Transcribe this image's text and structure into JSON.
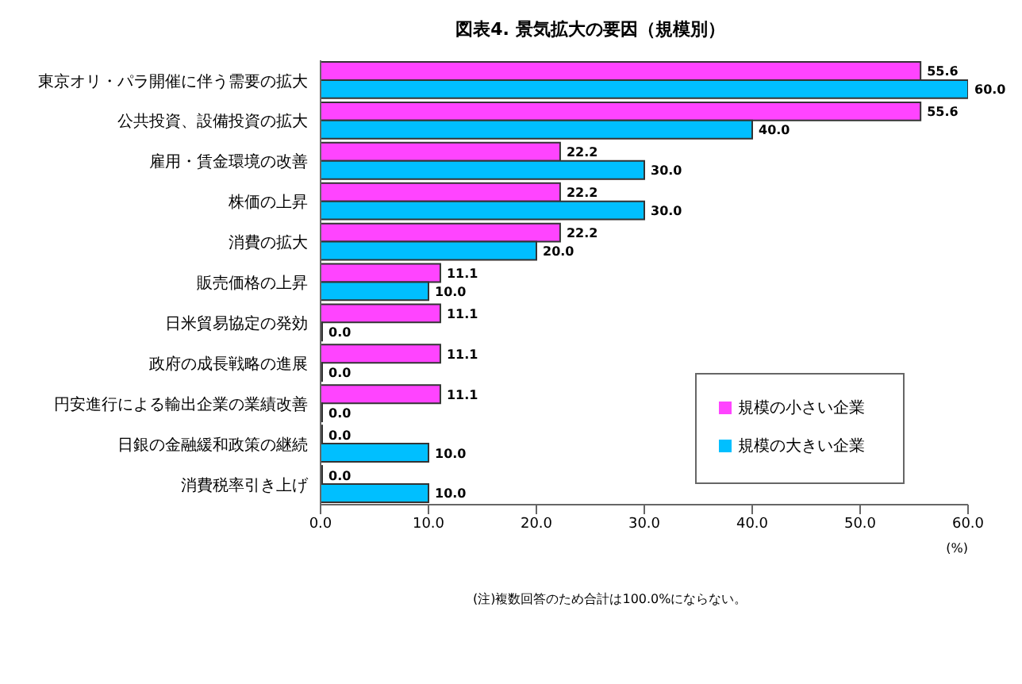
{
  "chart_data": {
    "type": "bar",
    "orientation": "horizontal",
    "title": "図表4. 景気拡大の要因（規模別）",
    "xlabel": "(%)",
    "categories": [
      "東京オリ・パラ開催に伴う需要の拡大",
      "公共投資、設備投資の拡大",
      "雇用・賃金環境の改善",
      "株価の上昇",
      "消費の拡大",
      "販売価格の上昇",
      "日米貿易協定の発効",
      "政府の成長戦略の進展",
      "円安進行による輸出企業の業績改善",
      "日銀の金融緩和政策の継続",
      "消費税率引き上げ"
    ],
    "series": [
      {
        "name": "規模の小さい企業",
        "color": "#ff44ff",
        "values": [
          55.6,
          55.6,
          22.2,
          22.2,
          22.2,
          11.1,
          11.1,
          11.1,
          11.1,
          0,
          0
        ],
        "value_labels": [
          "55.6",
          "55.6",
          "22.2",
          "22.2",
          "22.2",
          "11.1",
          "11.1",
          "11.1",
          "11.1",
          "0.0",
          "0.0"
        ]
      },
      {
        "name": "規模の大きい企業",
        "color": "#00bfff",
        "values": [
          60,
          40,
          30,
          30,
          20,
          10,
          0,
          0,
          0,
          10,
          10
        ],
        "value_labels": [
          "60.0",
          "40.0",
          "30.0",
          "30.0",
          "20.0",
          "10.0",
          "0.0",
          "0.0",
          "0.0",
          "10.0",
          "10.0"
        ]
      }
    ],
    "xlim": [
      0,
      60
    ],
    "xticks": [
      {
        "value": 0,
        "label": "0.0"
      },
      {
        "value": 10,
        "label": "10.0"
      },
      {
        "value": 20,
        "label": "20.0"
      },
      {
        "value": 30,
        "label": "30.0"
      },
      {
        "value": 40,
        "label": "40.0"
      },
      {
        "value": 50,
        "label": "50.0"
      },
      {
        "value": 60,
        "label": "60.0"
      }
    ],
    "legend": "right",
    "annotations": [
      "(注)複数回答のため合計は100.0%にならない。"
    ]
  }
}
